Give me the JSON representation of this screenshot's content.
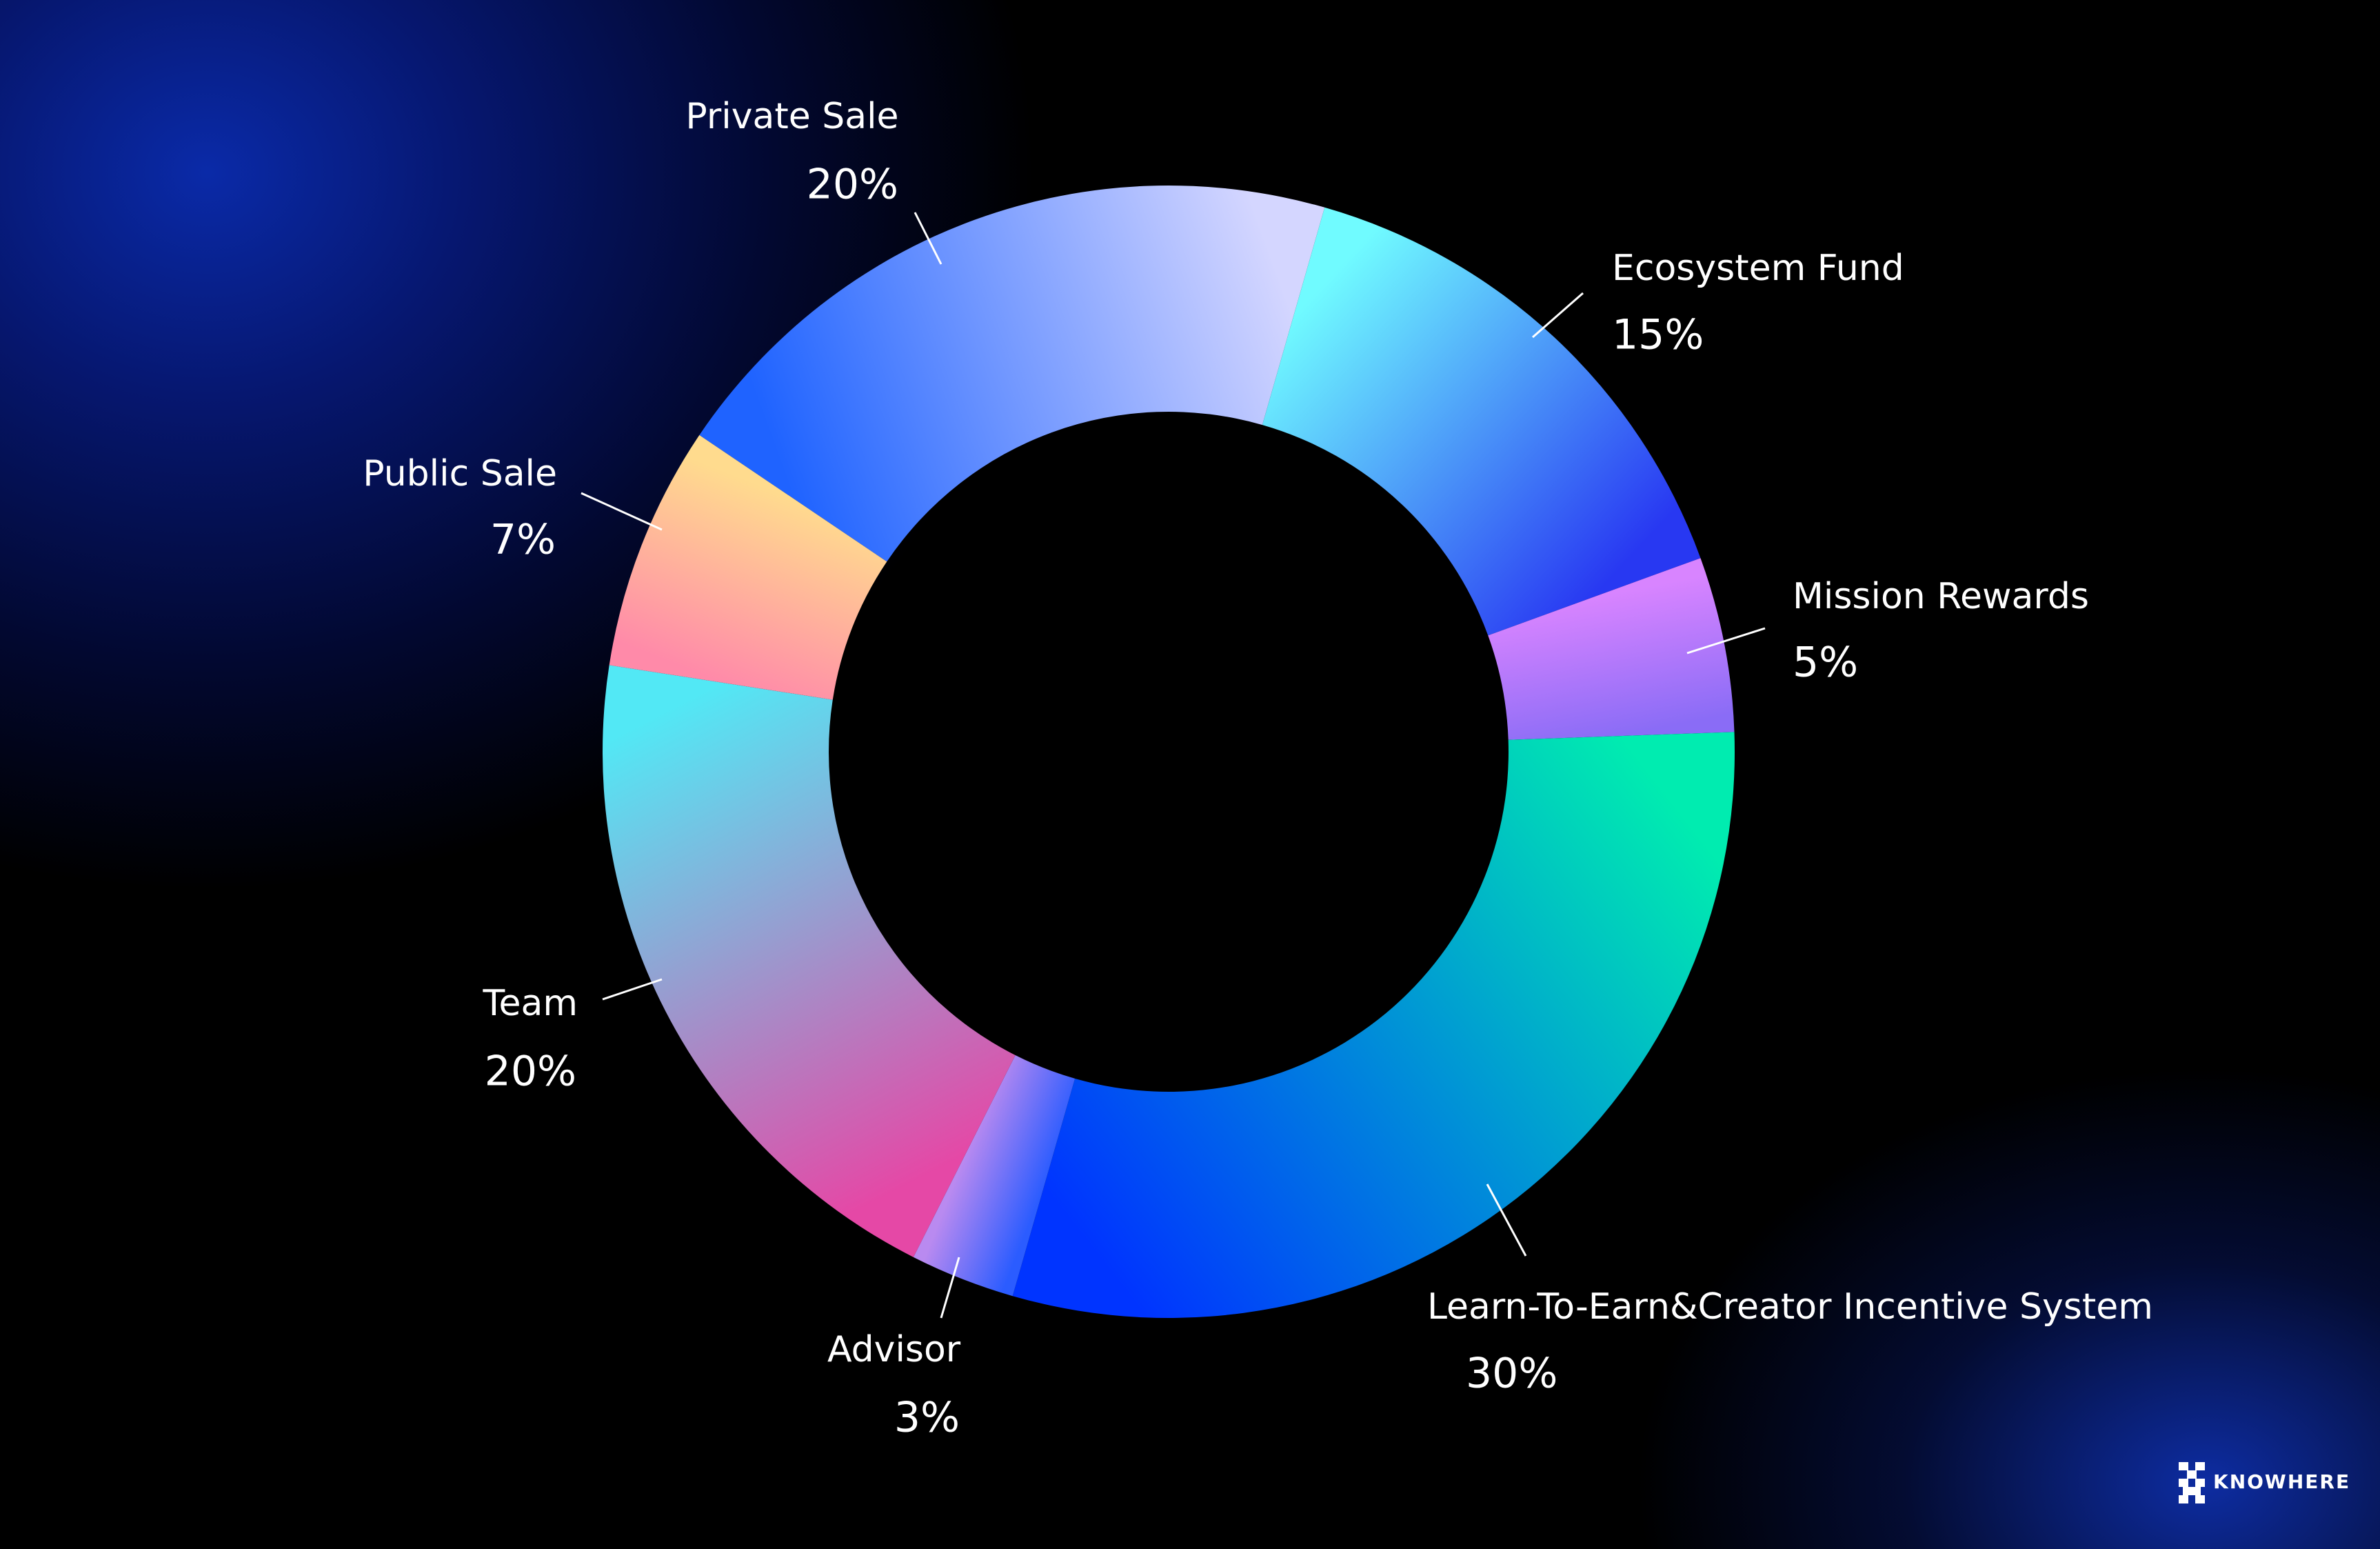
{
  "chart_data": {
    "type": "donut",
    "categories": [
      "Private Sale",
      "Ecosystem Fund",
      "Mission Rewards",
      "Learn-To-Earn&Creator Incentive System",
      "Advisor",
      "Team",
      "Public Sale"
    ],
    "values": [
      20,
      15,
      5,
      30,
      3,
      20,
      7
    ],
    "value_labels": [
      "20%",
      "15%",
      "5%",
      "30%",
      "3%",
      "20%",
      "7%"
    ],
    "colors": [
      [
        "#1f63ff",
        "#d4d6ff"
      ],
      [
        "#70fbff",
        "#2838f2"
      ],
      [
        "#d884ff",
        "#8a6cf6"
      ],
      [
        "#00ecb0",
        "#0034ff"
      ],
      [
        "#2b5cff",
        "#b98af0"
      ],
      [
        "#e548a6",
        "#52e8f5"
      ],
      [
        "#ff8aa9",
        "#ffdb8e"
      ]
    ],
    "brand": "KNOWHERE"
  }
}
